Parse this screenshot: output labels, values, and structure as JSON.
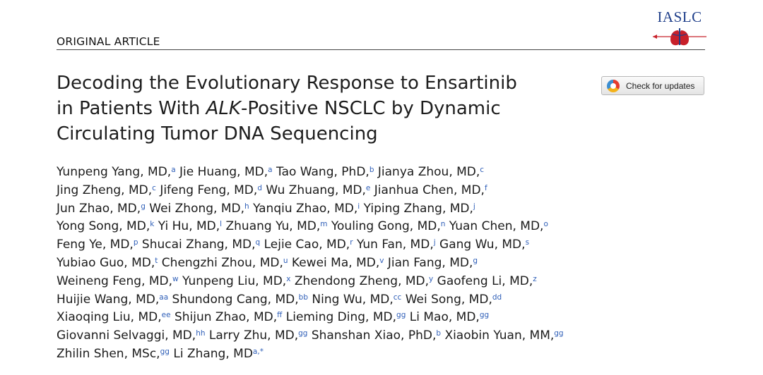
{
  "header": {
    "label": "ORIGINAL ARTICLE",
    "logo_text": "IASLC"
  },
  "title": {
    "part1": "Decoding the Evolutionary Response to Ensartinib",
    "part2": "in Patients With ",
    "gene": "ALK",
    "part3": "-Positive NSCLC by Dynamic",
    "part4": "Circulating Tumor DNA Sequencing"
  },
  "check_updates": {
    "label": "Check for updates"
  },
  "authors": [
    [
      [
        "Yunpeng Yang, MD,",
        "a"
      ],
      [
        "Jie Huang, MD,",
        "a"
      ],
      [
        "Tao Wang, PhD,",
        "b"
      ],
      [
        "Jianya Zhou, MD,",
        "c"
      ]
    ],
    [
      [
        "Jing Zheng, MD,",
        "c"
      ],
      [
        "Jifeng Feng, MD,",
        "d"
      ],
      [
        "Wu Zhuang, MD,",
        "e"
      ],
      [
        "Jianhua Chen, MD,",
        "f"
      ]
    ],
    [
      [
        "Jun Zhao, MD,",
        "g"
      ],
      [
        "Wei Zhong, MD,",
        "h"
      ],
      [
        "Yanqiu Zhao, MD,",
        "i"
      ],
      [
        "Yiping Zhang, MD,",
        "j"
      ]
    ],
    [
      [
        "Yong Song, MD,",
        "k"
      ],
      [
        "Yi Hu, MD,",
        "l"
      ],
      [
        "Zhuang Yu, MD,",
        "m"
      ],
      [
        "Youling Gong, MD,",
        "n"
      ],
      [
        "Yuan Chen, MD,",
        "o"
      ]
    ],
    [
      [
        "Feng Ye, MD,",
        "p"
      ],
      [
        "Shucai Zhang, MD,",
        "q"
      ],
      [
        "Lejie Cao, MD,",
        "r"
      ],
      [
        "Yun Fan, MD,",
        "j"
      ],
      [
        "Gang Wu, MD,",
        "s"
      ]
    ],
    [
      [
        "Yubiao Guo, MD,",
        "t"
      ],
      [
        "Chengzhi Zhou, MD,",
        "u"
      ],
      [
        "Kewei Ma, MD,",
        "v"
      ],
      [
        "Jian Fang, MD,",
        "g"
      ]
    ],
    [
      [
        "Weineng Feng, MD,",
        "w"
      ],
      [
        "Yunpeng Liu, MD,",
        "x"
      ],
      [
        "Zhendong Zheng, MD,",
        "y"
      ],
      [
        "Gaofeng Li, MD,",
        "z"
      ]
    ],
    [
      [
        "Huijie Wang, MD,",
        "aa"
      ],
      [
        "Shundong Cang, MD,",
        "bb"
      ],
      [
        "Ning Wu, MD,",
        "cc"
      ],
      [
        "Wei Song, MD,",
        "dd"
      ]
    ],
    [
      [
        "Xiaoqing Liu, MD,",
        "ee"
      ],
      [
        "Shijun Zhao, MD,",
        "ff"
      ],
      [
        "Lieming Ding, MD,",
        "gg"
      ],
      [
        "Li Mao, MD,",
        "gg"
      ]
    ],
    [
      [
        "Giovanni Selvaggi, MD,",
        "hh"
      ],
      [
        "Larry Zhu, MD,",
        "gg"
      ],
      [
        "Shanshan Xiao, PhD,",
        "b"
      ],
      [
        "Xiaobin Yuan, MM,",
        "gg"
      ]
    ],
    [
      [
        "Zhilin Shen, MSc,",
        "gg"
      ],
      [
        "Li Zhang, MD",
        "a,*"
      ]
    ]
  ]
}
